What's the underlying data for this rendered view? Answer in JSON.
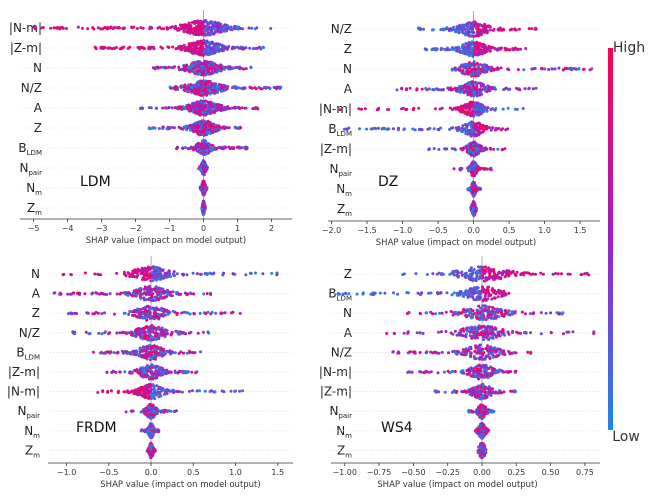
{
  "chart_data": [
    {
      "type": "scatter",
      "subtype": "shap-beeswarm",
      "label": "LDM",
      "xlabel": "SHAP value (impact on model output)",
      "xlim": [
        -5.4,
        2.6
      ],
      "xticks": [
        -5,
        -4,
        -3,
        -2,
        -1,
        0,
        1,
        2
      ],
      "tick_labels": [
        "−5",
        "−4",
        "−3",
        "−2",
        "−1",
        "0",
        "1",
        "2"
      ],
      "features": [
        {
          "base": "|N-m|",
          "sub": "",
          "min": -5.0,
          "max": 2.05,
          "spread": 1.0,
          "neg": "high"
        },
        {
          "base": "|Z-m|",
          "sub": "",
          "min": -3.2,
          "max": 1.8,
          "spread": 0.8,
          "neg": "high"
        },
        {
          "base": "N",
          "sub": "",
          "min": -1.5,
          "max": 1.4,
          "spread": 0.75,
          "neg": "mix"
        },
        {
          "base": "N/Z",
          "sub": "",
          "min": -1.0,
          "max": 2.3,
          "spread": 0.8,
          "neg": "mix"
        },
        {
          "base": "A",
          "sub": "",
          "min": -1.9,
          "max": 1.6,
          "spread": 0.7,
          "neg": "mix"
        },
        {
          "base": "Z",
          "sub": "",
          "min": -1.6,
          "max": 1.1,
          "spread": 0.55,
          "neg": "mix"
        },
        {
          "base": "B",
          "sub": "LDM",
          "min": -0.8,
          "max": 1.3,
          "spread": 0.35,
          "neg": "mix"
        },
        {
          "base": "N",
          "sub": "pair",
          "min": -0.15,
          "max": 0.15,
          "spread": 0.1,
          "neg": "mix"
        },
        {
          "base": "N",
          "sub": "m",
          "min": -0.1,
          "max": 0.1,
          "spread": 0.08,
          "neg": "mix"
        },
        {
          "base": "Z",
          "sub": "m",
          "min": -0.05,
          "max": 0.05,
          "spread": 0.05,
          "neg": "mix"
        }
      ]
    },
    {
      "type": "scatter",
      "subtype": "shap-beeswarm",
      "label": "DZ",
      "xlabel": "SHAP value (impact on model output)",
      "xlim": [
        -2.05,
        1.78
      ],
      "xticks": [
        -2.0,
        -1.5,
        -1.0,
        -0.5,
        0.0,
        0.5,
        1.0,
        1.5
      ],
      "tick_labels": [
        "−2.0",
        "−1.5",
        "−1.0",
        "−0.5",
        "0.0",
        "0.5",
        "1.0",
        "1.5"
      ],
      "features": [
        {
          "base": "N/Z",
          "sub": "",
          "min": -0.8,
          "max": 0.9,
          "spread": 0.35,
          "neg": "low"
        },
        {
          "base": "Z",
          "sub": "",
          "min": -0.7,
          "max": 0.75,
          "spread": 0.3,
          "neg": "low"
        },
        {
          "base": "N",
          "sub": "",
          "min": -0.3,
          "max": 1.68,
          "spread": 0.3,
          "neg": "mix"
        },
        {
          "base": "A",
          "sub": "",
          "min": -1.1,
          "max": 0.9,
          "spread": 0.3,
          "neg": "mix"
        },
        {
          "base": "|N-m|",
          "sub": "",
          "min": -1.9,
          "max": 0.7,
          "spread": 0.25,
          "neg": "high"
        },
        {
          "base": "B",
          "sub": "LDM",
          "min": -1.85,
          "max": 0.5,
          "spread": 0.25,
          "neg": "low"
        },
        {
          "base": "|Z-m|",
          "sub": "",
          "min": -0.65,
          "max": 0.45,
          "spread": 0.15,
          "neg": "mix"
        },
        {
          "base": "N",
          "sub": "pair",
          "min": -0.3,
          "max": 0.25,
          "spread": 0.08,
          "neg": "mix"
        },
        {
          "base": "N",
          "sub": "m",
          "min": -0.08,
          "max": 0.1,
          "spread": 0.05,
          "neg": "mix"
        },
        {
          "base": "Z",
          "sub": "m",
          "min": -0.04,
          "max": 0.04,
          "spread": 0.03,
          "neg": "mix"
        }
      ]
    },
    {
      "type": "scatter",
      "subtype": "shap-beeswarm",
      "label": "FRDM",
      "xlabel": "SHAP value (impact on model output)",
      "xlim": [
        -1.22,
        1.68
      ],
      "xticks": [
        -1.0,
        -0.5,
        0.0,
        0.5,
        1.0,
        1.5
      ],
      "tick_labels": [
        "−1.0",
        "−0.5",
        "0.0",
        "0.5",
        "1.0",
        "1.5"
      ],
      "features": [
        {
          "base": "N",
          "sub": "",
          "min": -1.05,
          "max": 1.55,
          "spread": 0.35,
          "neg": "high"
        },
        {
          "base": "A",
          "sub": "",
          "min": -1.15,
          "max": 0.75,
          "spread": 0.3,
          "neg": "mix"
        },
        {
          "base": "Z",
          "sub": "",
          "min": -1.0,
          "max": 1.1,
          "spread": 0.3,
          "neg": "mix"
        },
        {
          "base": "N/Z",
          "sub": "",
          "min": -0.95,
          "max": 0.7,
          "spread": 0.3,
          "neg": "mix"
        },
        {
          "base": "B",
          "sub": "LDM",
          "min": -0.7,
          "max": 0.6,
          "spread": 0.25,
          "neg": "mix"
        },
        {
          "base": "|Z-m|",
          "sub": "",
          "min": -0.55,
          "max": 0.55,
          "spread": 0.22,
          "neg": "mix"
        },
        {
          "base": "|N-m|",
          "sub": "",
          "min": -0.65,
          "max": 1.1,
          "spread": 0.25,
          "neg": "high"
        },
        {
          "base": "N",
          "sub": "pair",
          "min": -0.3,
          "max": 0.3,
          "spread": 0.1,
          "neg": "mix"
        },
        {
          "base": "N",
          "sub": "m",
          "min": -0.12,
          "max": 0.1,
          "spread": 0.05,
          "neg": "mix"
        },
        {
          "base": "Z",
          "sub": "m",
          "min": -0.05,
          "max": 0.05,
          "spread": 0.03,
          "neg": "mix"
        }
      ]
    },
    {
      "type": "scatter",
      "subtype": "shap-beeswarm",
      "label": "WS4",
      "xlabel": "SHAP value (impact on model output)",
      "xlim": [
        -1.1,
        0.86
      ],
      "xticks": [
        -1.0,
        -0.75,
        -0.5,
        -0.25,
        0.0,
        0.25,
        0.5,
        0.75
      ],
      "tick_labels": [
        "−1.00",
        "−0.75",
        "−0.50",
        "−0.25",
        "0.00",
        "0.25",
        "0.50",
        "0.75"
      ],
      "features": [
        {
          "base": "Z",
          "sub": "",
          "min": -0.6,
          "max": 0.78,
          "spread": 0.3,
          "neg": "low"
        },
        {
          "base": "B",
          "sub": "LDM",
          "min": -1.05,
          "max": 0.2,
          "spread": 0.2,
          "neg": "low"
        },
        {
          "base": "N",
          "sub": "",
          "min": -0.55,
          "max": 0.6,
          "spread": 0.25,
          "neg": "mix"
        },
        {
          "base": "A",
          "sub": "",
          "min": -0.7,
          "max": 0.85,
          "spread": 0.25,
          "neg": "mix"
        },
        {
          "base": "N/Z",
          "sub": "",
          "min": -0.65,
          "max": 0.38,
          "spread": 0.2,
          "neg": "mix"
        },
        {
          "base": "|N-m|",
          "sub": "",
          "min": -0.55,
          "max": 0.3,
          "spread": 0.15,
          "neg": "mix"
        },
        {
          "base": "|Z-m|",
          "sub": "",
          "min": -0.35,
          "max": 0.25,
          "spread": 0.12,
          "neg": "mix"
        },
        {
          "base": "N",
          "sub": "pair",
          "min": -0.1,
          "max": 0.1,
          "spread": 0.05,
          "neg": "mix"
        },
        {
          "base": "N",
          "sub": "m",
          "min": -0.05,
          "max": 0.05,
          "spread": 0.03,
          "neg": "mix"
        },
        {
          "base": "Z",
          "sub": "m",
          "min": -0.03,
          "max": 0.03,
          "spread": 0.02,
          "neg": "mix"
        }
      ]
    }
  ],
  "colorbar": {
    "high_label": "High",
    "low_label": "Low",
    "high_color": "#ff0052",
    "mid_color": "#a020c8",
    "low_color": "#1e88e5"
  }
}
